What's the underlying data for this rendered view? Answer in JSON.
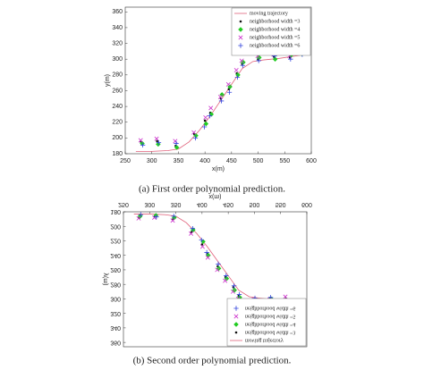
{
  "chart_data": [
    {
      "type": "scatter",
      "x_label": "x(m)",
      "y_label": "y(m)",
      "caption": "(a) First order polynomial prediction.",
      "xlim": [
        250,
        600
      ],
      "ylim": [
        180,
        366
      ],
      "xticks": [
        250,
        300,
        350,
        400,
        450,
        500,
        550,
        600
      ],
      "yticks": [
        180,
        200,
        220,
        240,
        260,
        280,
        300,
        320,
        340,
        360
      ],
      "legend": "upper right",
      "grid": false,
      "flipped": false,
      "series": [
        {
          "name": "moving trajectory",
          "color": "#e0607a",
          "marker": "line",
          "x": [
            270,
            300,
            330,
            350,
            370,
            390,
            410,
            430,
            450,
            470,
            490,
            510,
            540,
            570,
            590
          ],
          "y": [
            183,
            183,
            184,
            186,
            195,
            210,
            228,
            248,
            268,
            288,
            297,
            299,
            301,
            304,
            306
          ]
        },
        {
          "name": "neighborhood width =3",
          "color": "#111111",
          "marker": "dot",
          "x": [
            280,
            310,
            345,
            380,
            400,
            410,
            430,
            445,
            460,
            470,
            500,
            530,
            560,
            580
          ],
          "y": [
            195,
            196,
            190,
            205,
            222,
            232,
            250,
            262,
            282,
            294,
            300,
            303,
            302,
            308
          ]
        },
        {
          "name": "neighborhood width =4",
          "color": "#22cc22",
          "marker": "diamond",
          "x": [
            282,
            312,
            347,
            383,
            402,
            412,
            432,
            447,
            462,
            472,
            502,
            532,
            562,
            582
          ],
          "y": [
            193,
            192,
            188,
            203,
            218,
            230,
            255,
            265,
            280,
            296,
            302,
            300,
            305,
            307
          ]
        },
        {
          "name": "neighborhood width =5",
          "color": "#cc33cc",
          "marker": "cross",
          "x": [
            279,
            309,
            344,
            379,
            401,
            411,
            429,
            444,
            459,
            469,
            499,
            529,
            559,
            579
          ],
          "y": [
            197,
            199,
            196,
            207,
            226,
            238,
            252,
            268,
            286,
            298,
            304,
            306,
            304,
            310
          ]
        },
        {
          "name": "neighborhood width =6",
          "color": "#3344dd",
          "marker": "plus",
          "x": [
            283,
            313,
            346,
            382,
            399,
            409,
            431,
            446,
            461,
            471,
            501,
            531,
            561,
            583
          ],
          "y": [
            191,
            194,
            193,
            200,
            214,
            228,
            247,
            258,
            277,
            292,
            298,
            304,
            300,
            306
          ]
        }
      ]
    },
    {
      "type": "scatter",
      "x_label": "x(m)",
      "y_label": "y(m)",
      "caption": "(b) Second order polynomial prediction.",
      "xlim": [
        250,
        600
      ],
      "ylim": [
        180,
        366
      ],
      "xticks": [
        250,
        300,
        350,
        400,
        450,
        500,
        550,
        600
      ],
      "yticks": [
        180,
        200,
        220,
        240,
        260,
        280,
        300,
        320,
        340,
        360
      ],
      "legend": "upper right",
      "grid": false,
      "flipped": true,
      "series": [
        {
          "name": "moving trajectory",
          "color": "#e0607a",
          "marker": "line",
          "x": [
            270,
            300,
            330,
            350,
            370,
            390,
            410,
            430,
            450,
            470,
            490,
            510,
            540,
            570,
            590
          ],
          "y": [
            183,
            183,
            184,
            186,
            195,
            210,
            228,
            248,
            268,
            288,
            297,
            299,
            301,
            304,
            306
          ]
        },
        {
          "name": "neighborhood width =3",
          "color": "#111111",
          "marker": "dot",
          "x": [
            280,
            310,
            345,
            380,
            400,
            410,
            430,
            445,
            460,
            470,
            500,
            530,
            560,
            575
          ],
          "y": [
            188,
            186,
            190,
            208,
            225,
            238,
            255,
            270,
            284,
            296,
            300,
            299,
            300,
            312
          ]
        },
        {
          "name": "neighborhood width =4",
          "color": "#22cc22",
          "marker": "diamond",
          "x": [
            282,
            312,
            347,
            383,
            402,
            412,
            432,
            447,
            462,
            472,
            502,
            532,
            562,
            577
          ],
          "y": [
            186,
            185,
            188,
            205,
            221,
            240,
            258,
            272,
            288,
            298,
            302,
            300,
            302,
            316
          ]
        },
        {
          "name": "neighborhood width =5",
          "color": "#cc33cc",
          "marker": "cross",
          "x": [
            279,
            309,
            344,
            379,
            401,
            411,
            429,
            444,
            459,
            469,
            499,
            529,
            559,
            579
          ],
          "y": [
            189,
            188,
            192,
            210,
            228,
            243,
            260,
            275,
            290,
            300,
            301,
            301,
            297,
            320
          ]
        },
        {
          "name": "neighborhood width =6",
          "color": "#3344dd",
          "marker": "plus",
          "x": [
            283,
            313,
            346,
            382,
            399,
            409,
            431,
            446,
            461,
            471,
            501,
            531,
            561,
            581
          ],
          "y": [
            184,
            187,
            186,
            203,
            219,
            236,
            252,
            268,
            282,
            294,
            299,
            298,
            303,
            324
          ]
        }
      ]
    }
  ]
}
